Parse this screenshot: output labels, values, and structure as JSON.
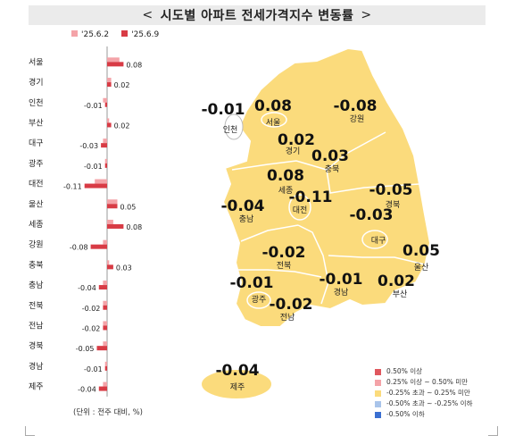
{
  "title": "시도별 아파트 전세가격지수 변동률",
  "title_arrow_left": "<",
  "title_arrow_right": ">",
  "legend": [
    {
      "label": "'25.6.2",
      "color": "#f4a3a8"
    },
    {
      "label": "'25.6.9",
      "color": "#d83b45"
    }
  ],
  "unit_note": "(단위 : 전주 대비, %)",
  "chart_data": {
    "type": "bar",
    "orientation": "horizontal",
    "categories": [
      "서울",
      "경기",
      "인천",
      "부산",
      "대구",
      "광주",
      "대전",
      "울산",
      "세종",
      "강원",
      "충북",
      "충남",
      "전북",
      "전남",
      "경북",
      "경남",
      "제주"
    ],
    "series": [
      {
        "name": "'25.6.2",
        "values": [
          0.06,
          0.02,
          -0.02,
          0.01,
          -0.02,
          -0.01,
          -0.06,
          0.05,
          0.03,
          -0.02,
          0.01,
          -0.02,
          -0.02,
          -0.02,
          -0.02,
          -0.01,
          -0.02
        ]
      },
      {
        "name": "'25.6.9",
        "values": [
          0.08,
          0.02,
          -0.01,
          0.02,
          -0.03,
          -0.01,
          -0.11,
          0.05,
          0.08,
          -0.08,
          0.03,
          -0.04,
          -0.02,
          -0.02,
          -0.05,
          -0.01,
          -0.04
        ]
      }
    ],
    "data_labels": [
      "0.08",
      "0.02",
      "-0.01",
      "0.02",
      "-0.03",
      "-0.01",
      "-0.11",
      "0.05",
      "0.08",
      "-0.08",
      "0.03",
      "-0.04",
      "-0.02",
      "-0.02",
      "-0.05",
      "-0.01",
      "-0.04"
    ]
  },
  "map": {
    "regions": [
      {
        "name": "인천",
        "value": "-0.01"
      },
      {
        "name": "서울",
        "value": "0.08"
      },
      {
        "name": "경기",
        "value": "0.02"
      },
      {
        "name": "강원",
        "value": "-0.08"
      },
      {
        "name": "충북",
        "value": "0.03"
      },
      {
        "name": "세종",
        "value": "0.08"
      },
      {
        "name": "대전",
        "value": "-0.11"
      },
      {
        "name": "충남",
        "value": "-0.04"
      },
      {
        "name": "경북",
        "value": "-0.05"
      },
      {
        "name": "대구",
        "value": "-0.03"
      },
      {
        "name": "울산",
        "value": "0.05"
      },
      {
        "name": "전북",
        "value": "-0.02"
      },
      {
        "name": "경남",
        "value": "-0.01"
      },
      {
        "name": "부산",
        "value": "0.02"
      },
      {
        "name": "광주",
        "value": "-0.01"
      },
      {
        "name": "전남",
        "value": "-0.02"
      },
      {
        "name": "제주",
        "value": "-0.04"
      }
    ],
    "fill_color": "#fbdb7c",
    "legend": [
      {
        "label": "0.50% 이상",
        "color": "#e0575e"
      },
      {
        "label": "0.25% 이상 ~ 0.50% 미만",
        "color": "#f4a3a8"
      },
      {
        "label": "-0.25% 초과 ~ 0.25% 미만",
        "color": "#fbdb7c"
      },
      {
        "label": "-0.50% 초과 ~ -0.25% 이하",
        "color": "#a9c4ea"
      },
      {
        "label": "-0.50% 이하",
        "color": "#3b6fd1"
      }
    ]
  }
}
